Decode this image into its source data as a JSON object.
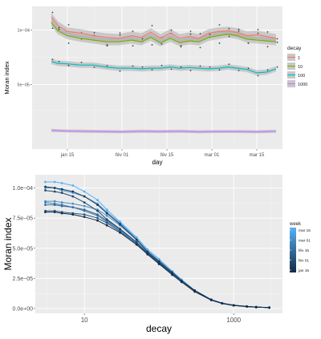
{
  "chart_data": [
    {
      "type": "line",
      "xlabel": "day",
      "ylabel": "Moran index",
      "x_tick_labels": [
        "jan 15",
        "fév 01",
        "fév 15",
        "mar 01",
        "mar 15"
      ],
      "x_ticks": [
        15,
        32,
        46,
        60,
        74
      ],
      "xlim": [
        4,
        82
      ],
      "y_scale": "log",
      "y_tick_labels": [
        "1e−04",
        "5e−05"
      ],
      "y_ticks": [
        0.0001,
        5e-05
      ],
      "ylim": [
        2.2e-05,
        0.000135
      ],
      "grid": true,
      "legend_title": "decay",
      "legend_position": "right",
      "series": [
        {
          "name": "1",
          "color": "#f8766d",
          "x": [
            10,
            12,
            15,
            19,
            23,
            27,
            31,
            35,
            38,
            41,
            44,
            47,
            50,
            53,
            56,
            59,
            62,
            65,
            68,
            71,
            74,
            77,
            80
          ],
          "y": [
            0.000118,
            0.000106,
            9.8e-05,
            9.6e-05,
            9.3e-05,
            9.1e-05,
            9e-05,
            9.3e-05,
            9.1e-05,
            9.7e-05,
            9e-05,
            9.6e-05,
            9e-05,
            9.2e-05,
            9e-05,
            9.6e-05,
            9.8e-05,
            9.9e-05,
            9.7e-05,
            9.3e-05,
            9.4e-05,
            9.2e-05,
            9e-05
          ]
        },
        {
          "name": "10",
          "color": "#7cae00",
          "x": [
            10,
            12,
            15,
            19,
            23,
            27,
            31,
            35,
            38,
            41,
            44,
            47,
            50,
            53,
            56,
            59,
            62,
            65,
            68,
            71,
            74,
            77,
            80
          ],
          "y": [
            0.00011,
            9.9e-05,
            9.3e-05,
            9e-05,
            8.8e-05,
            8.6e-05,
            8.6e-05,
            8.8e-05,
            8.6e-05,
            9.1e-05,
            8.5e-05,
            9e-05,
            8.5e-05,
            8.7e-05,
            8.6e-05,
            9.1e-05,
            9.3e-05,
            9.5e-05,
            9.3e-05,
            8.9e-05,
            8.8e-05,
            8.7e-05,
            8.6e-05
          ]
        },
        {
          "name": "100",
          "color": "#00bfc4",
          "x": [
            10,
            12,
            15,
            19,
            23,
            27,
            31,
            35,
            38,
            41,
            44,
            47,
            50,
            53,
            56,
            59,
            62,
            65,
            68,
            71,
            74,
            77,
            80
          ],
          "y": [
            6.7e-05,
            6.55e-05,
            6.5e-05,
            6.4e-05,
            6.4e-05,
            6.25e-05,
            6.15e-05,
            6.15e-05,
            6.1e-05,
            6.15e-05,
            6.15e-05,
            6.25e-05,
            6.15e-05,
            6.2e-05,
            6.15e-05,
            6.1e-05,
            6.15e-05,
            6.25e-05,
            6.15e-05,
            6.05e-05,
            5.8e-05,
            5.85e-05,
            6.1e-05
          ]
        },
        {
          "name": "1000",
          "color": "#c77cff",
          "x": [
            10,
            14,
            20,
            26,
            32,
            38,
            44,
            50,
            56,
            62,
            68,
            74,
            80
          ],
          "y": [
            2.79e-05,
            2.77e-05,
            2.76e-05,
            2.75e-05,
            2.74e-05,
            2.76e-05,
            2.75e-05,
            2.76e-05,
            2.74e-05,
            2.75e-05,
            2.75e-05,
            2.74e-05,
            2.76e-05
          ]
        }
      ]
    },
    {
      "type": "line",
      "xlabel": "decay",
      "ylabel": "Moran index",
      "x_scale": "log",
      "x_tick_labels": [
        "10",
        "1000"
      ],
      "x_ticks": [
        10,
        1000
      ],
      "xlim": [
        2.2,
        4500
      ],
      "x": [
        3,
        4,
        5,
        7,
        10,
        15,
        20,
        30,
        50,
        70,
        100,
        150,
        200,
        300,
        500,
        700,
        1000,
        1500,
        2000,
        3000
      ],
      "y_tick_labels": [
        "0.0e+00",
        "2.5e−05",
        "5.0e−05",
        "7.5e−05",
        "1.0e−04"
      ],
      "y_ticks": [
        0,
        2.5e-05,
        5e-05,
        7.5e-05,
        0.0001
      ],
      "ylim": [
        -4e-06,
        0.000111
      ],
      "grid": true,
      "legend_title": "week",
      "legend_position": "right",
      "legend_labels": [
        "mar 15",
        "mar 01",
        "fév 15",
        "fév 01",
        "jan 15"
      ],
      "series": [
        {
          "color": "#56b1f7",
          "y": [
            0.000105,
            0.000105,
            0.000104,
            0.000102,
            9.7e-05,
            9e-05,
            8.2e-05,
            7.2e-05,
            5.9e-05,
            4.9e-05,
            4.1e-05,
            3.1e-05,
            2.4e-05,
            1.5e-05,
            7.5e-06,
            4.5e-06,
            2.8e-06,
            1.8e-06,
            1.3e-06,
            8e-07
          ]
        },
        {
          "color": "#4f9fdf",
          "y": [
            0.0001,
            0.0001,
            9.8e-05,
            9.6e-05,
            9.3e-05,
            8.7e-05,
            8e-05,
            7.1e-05,
            5.8e-05,
            4.8e-05,
            4e-05,
            3e-05,
            2.4e-05,
            1.5e-05,
            7.5e-06,
            4.5e-06,
            2.8e-06,
            1.8e-06,
            1.2e-06,
            8e-07
          ]
        },
        {
          "color": "#4a8fc9",
          "y": [
            8.9e-05,
            8.9e-05,
            8.8e-05,
            8.7e-05,
            8.5e-05,
            8.2e-05,
            7.7e-05,
            6.9e-05,
            5.7e-05,
            4.7e-05,
            3.9e-05,
            3e-05,
            2.3e-05,
            1.5e-05,
            7.3e-06,
            4.4e-06,
            2.7e-06,
            1.7e-06,
            1.2e-06,
            8e-07
          ]
        },
        {
          "color": "#3f7eb2",
          "y": [
            8.8e-05,
            8.7e-05,
            8.6e-05,
            8.4e-05,
            8.1e-05,
            7.7e-05,
            7.2e-05,
            6.5e-05,
            5.5e-05,
            4.6e-05,
            3.8e-05,
            2.9e-05,
            2.3e-05,
            1.5e-05,
            7.3e-06,
            4.4e-06,
            2.7e-06,
            1.7e-06,
            1.2e-06,
            8e-07
          ]
        },
        {
          "color": "#346c9c",
          "y": [
            8.6e-05,
            8.6e-05,
            8.5e-05,
            8.4e-05,
            8.2e-05,
            7.8e-05,
            7.3e-05,
            6.6e-05,
            5.5e-05,
            4.6e-05,
            3.8e-05,
            2.9e-05,
            2.3e-05,
            1.5e-05,
            7.2e-06,
            4.3e-06,
            2.6e-06,
            1.7e-06,
            1.2e-06,
            8e-07
          ]
        },
        {
          "color": "#2b5b85",
          "y": [
            8.1e-05,
            8.1e-05,
            8e-05,
            7.9e-05,
            7.8e-05,
            7.5e-05,
            7.1e-05,
            6.4e-05,
            5.4e-05,
            4.5e-05,
            3.7e-05,
            2.9e-05,
            2.3e-05,
            1.5e-05,
            7.2e-06,
            4.3e-06,
            2.6e-06,
            1.7e-06,
            1.2e-06,
            8e-07
          ]
        },
        {
          "color": "#224a6f",
          "y": [
            9.8e-05,
            9.7e-05,
            9.6e-05,
            9.3e-05,
            8.8e-05,
            8.1e-05,
            7.4e-05,
            6.6e-05,
            5.5e-05,
            4.6e-05,
            3.8e-05,
            2.9e-05,
            2.3e-05,
            1.5e-05,
            7.2e-06,
            4.3e-06,
            2.6e-06,
            1.7e-06,
            1.2e-06,
            8e-07
          ]
        },
        {
          "color": "#1a3a59",
          "y": [
            0.000101,
            0.0001,
            9.9e-05,
            9.7e-05,
            9.3e-05,
            8.6e-05,
            7.9e-05,
            7e-05,
            5.7e-05,
            4.7e-05,
            3.9e-05,
            3e-05,
            2.3e-05,
            1.5e-05,
            7.3e-06,
            4.4e-06,
            2.7e-06,
            1.7e-06,
            1.2e-06,
            8e-07
          ]
        },
        {
          "color": "#132b43",
          "y": [
            8e-05,
            8e-05,
            7.9e-05,
            7.8e-05,
            7.6e-05,
            7.3e-05,
            6.9e-05,
            6.3e-05,
            5.3e-05,
            4.5e-05,
            3.7e-05,
            2.8e-05,
            2.2e-05,
            1.4e-05,
            7e-06,
            4.2e-06,
            2.6e-06,
            1.6e-06,
            1.1e-06,
            8e-07
          ]
        }
      ]
    }
  ]
}
